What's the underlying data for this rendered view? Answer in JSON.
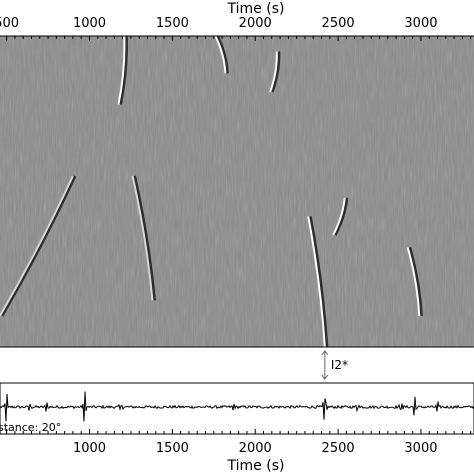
{
  "chart_data": [
    {
      "type": "heatmap",
      "title": "",
      "xlabel": "Time (s)",
      "xlim": [
        460,
        3320
      ],
      "xticks": [
        500,
        1000,
        1500,
        2000,
        2500,
        3000
      ],
      "xtick_labels": [
        "500",
        "1000",
        "1500",
        "2000",
        "2500",
        "3000"
      ],
      "background": "#8a8a8a",
      "arrivals": [
        {
          "name": "bright-arrival-1",
          "x": [
            1210,
            1175
          ],
          "y": [
            0.0,
            0.22
          ],
          "color": "#ffffff"
        },
        {
          "name": "bright-arrival-2",
          "x": [
            1760,
            1820
          ],
          "y": [
            0.0,
            0.12
          ],
          "color": "#ffffff"
        },
        {
          "name": "arrival-3",
          "x": [
            2130,
            2090
          ],
          "y": [
            0.05,
            0.18
          ],
          "color": "#ffffff"
        },
        {
          "name": "arrival-4",
          "x": [
            2320,
            2420
          ],
          "y": [
            0.58,
            1.0
          ],
          "color": "#ffffff"
        },
        {
          "name": "arrival-5",
          "x": [
            2540,
            2470
          ],
          "y": [
            0.52,
            0.64
          ],
          "color": "#ffffff"
        },
        {
          "name": "arrival-6",
          "x": [
            2920,
            2990
          ],
          "y": [
            0.68,
            0.9
          ],
          "color": "#ffffff"
        },
        {
          "name": "arrival-7",
          "x": [
            460,
            900
          ],
          "y": [
            0.9,
            0.45
          ],
          "color": "#d8d8d8"
        },
        {
          "name": "arrival-8",
          "x": [
            1260,
            1380
          ],
          "y": [
            0.45,
            0.85
          ],
          "color": "#d8d8d8"
        }
      ]
    },
    {
      "type": "line",
      "title": "",
      "xlabel": "Time (s)",
      "xlim": [
        460,
        3320
      ],
      "xticks": [
        1000,
        1500,
        2000,
        2500,
        3000
      ],
      "xtick_labels": [
        "1000",
        "1500",
        "2000",
        "2500",
        "3000"
      ],
      "annotation": "stance: 20°",
      "color": "#000000",
      "spikes": [
        {
          "x": 500,
          "amp": 0.75
        },
        {
          "x": 640,
          "amp": 0.25
        },
        {
          "x": 740,
          "amp": 0.3
        },
        {
          "x": 970,
          "amp": 0.85
        },
        {
          "x": 1190,
          "amp": 0.25
        },
        {
          "x": 1870,
          "amp": 0.2
        },
        {
          "x": 2420,
          "amp": 1.0
        },
        {
          "x": 2620,
          "amp": 0.3
        },
        {
          "x": 2880,
          "amp": 0.4
        },
        {
          "x": 2960,
          "amp": 0.55
        },
        {
          "x": 3100,
          "amp": 0.25
        }
      ]
    }
  ],
  "phase_marker": {
    "label": "I2*",
    "x": 2420
  }
}
